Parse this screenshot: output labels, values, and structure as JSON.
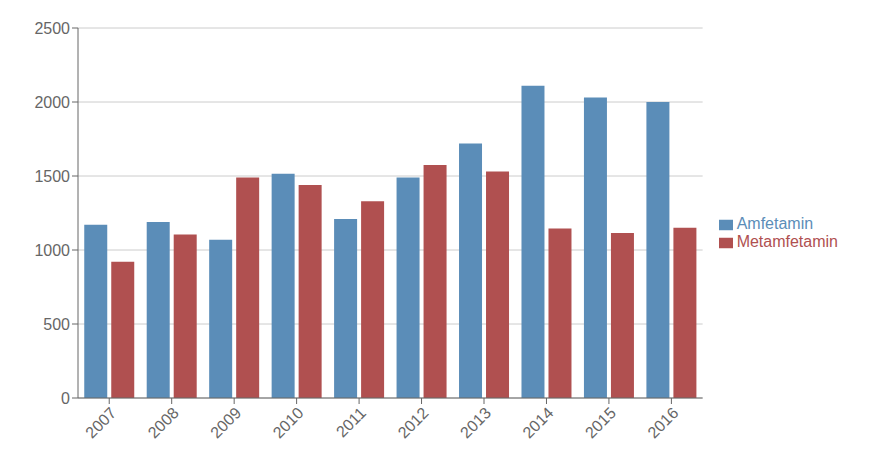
{
  "chart_data": {
    "type": "bar",
    "categories": [
      "2007",
      "2008",
      "2009",
      "2010",
      "2011",
      "2012",
      "2013",
      "2014",
      "2015",
      "2016"
    ],
    "series": [
      {
        "name": "Amfetamin",
        "color": "#5b8db8",
        "values": [
          1170,
          1190,
          1070,
          1515,
          1210,
          1490,
          1720,
          2110,
          2030,
          2000
        ]
      },
      {
        "name": "Metamfetamin",
        "color": "#b05050",
        "values": [
          920,
          1105,
          1490,
          1440,
          1330,
          1575,
          1530,
          1145,
          1115,
          1150
        ]
      }
    ],
    "ylim": [
      0,
      2500
    ],
    "yticks": [
      0,
      500,
      1000,
      1500,
      2000,
      2500
    ],
    "grid": true,
    "legend": "right"
  }
}
